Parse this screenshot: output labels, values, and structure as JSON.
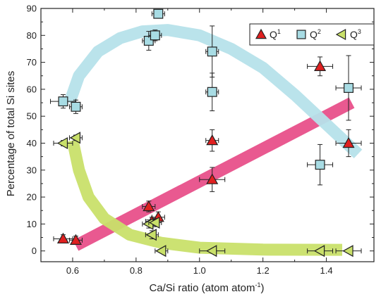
{
  "chart_data": {
    "type": "scatter",
    "xlabel_main": "Ca/Si ratio (atom atom",
    "xlabel_sup": "-1",
    "xlabel_end": ")",
    "ylabel": "Percentage of total Si sites",
    "xlim": [
      0.5,
      1.55
    ],
    "ylim": [
      -4,
      90
    ],
    "xticks": [
      0.6,
      0.8,
      1.0,
      1.2,
      1.4
    ],
    "xtick_labels": [
      "0.6",
      "0.8",
      "1.0",
      "1.2",
      "1.4"
    ],
    "yticks": [
      0,
      10,
      20,
      30,
      40,
      50,
      60,
      70,
      80,
      90
    ],
    "ytick_labels": [
      "0",
      "10",
      "20",
      "30",
      "40",
      "50",
      "60",
      "70",
      "80",
      "90"
    ],
    "legend_position": "top-right",
    "series": [
      {
        "name": "Q",
        "name_sup": "1",
        "marker": "triangle-up",
        "color": "#e02020",
        "points": [
          {
            "x": 0.57,
            "y": 4.5,
            "xerr": 0.03,
            "yerr": 1.5
          },
          {
            "x": 0.61,
            "y": 4.0,
            "xerr": 0.02,
            "yerr": 1.5
          },
          {
            "x": 0.84,
            "y": 16.5,
            "xerr": 0.02,
            "yerr": 2
          },
          {
            "x": 0.87,
            "y": 12.5,
            "xerr": 0.02,
            "yerr": 2
          },
          {
            "x": 0.85,
            "y": 11.0,
            "xerr": 0.02,
            "yerr": 1.5
          },
          {
            "x": 1.04,
            "y": 41.0,
            "xerr": 0.02,
            "yerr": 4
          },
          {
            "x": 1.04,
            "y": 26.5,
            "xerr": 0.04,
            "yerr": 4.5
          },
          {
            "x": 1.38,
            "y": 68.5,
            "xerr": 0.04,
            "yerr": 3.5
          },
          {
            "x": 1.47,
            "y": 40.0,
            "xerr": 0.04,
            "yerr": 5
          }
        ]
      },
      {
        "name": "Q",
        "name_sup": "2",
        "marker": "square",
        "color": "#a8dce4",
        "points": [
          {
            "x": 0.57,
            "y": 55.5,
            "xerr": 0.04,
            "yerr": 2.5
          },
          {
            "x": 0.61,
            "y": 53.5,
            "xerr": 0.02,
            "yerr": 2.5
          },
          {
            "x": 0.84,
            "y": 78.0,
            "xerr": 0.02,
            "yerr": 3.5
          },
          {
            "x": 0.86,
            "y": 80.0,
            "xerr": 0.02,
            "yerr": 2
          },
          {
            "x": 0.87,
            "y": 88.0,
            "xerr": 0.02,
            "yerr": 1
          },
          {
            "x": 1.04,
            "y": 74.0,
            "xerr": 0.02,
            "yerr": 9.5
          },
          {
            "x": 1.04,
            "y": 59.0,
            "xerr": 0.02,
            "yerr": 7
          },
          {
            "x": 1.38,
            "y": 32.0,
            "xerr": 0.04,
            "yerr": 7.5
          },
          {
            "x": 1.47,
            "y": 60.5,
            "xerr": 0.04,
            "yerr": 12
          }
        ]
      },
      {
        "name": "Q",
        "name_sup": "3",
        "marker": "triangle-left",
        "color": "#c9e06a",
        "points": [
          {
            "x": 0.57,
            "y": 40.0,
            "xerr": 0.03,
            "yerr": 1
          },
          {
            "x": 0.61,
            "y": 42.0,
            "xerr": 0.02,
            "yerr": 1
          },
          {
            "x": 0.84,
            "y": 10.0,
            "xerr": 0.02,
            "yerr": 1.5
          },
          {
            "x": 0.86,
            "y": 10.5,
            "xerr": 0.02,
            "yerr": 1.5
          },
          {
            "x": 0.85,
            "y": 6.0,
            "xerr": 0.02,
            "yerr": 1.5
          },
          {
            "x": 0.88,
            "y": 0.0,
            "xerr": 0.02,
            "yerr": 0
          },
          {
            "x": 1.04,
            "y": 0.0,
            "xerr": 0.04,
            "yerr": 0
          },
          {
            "x": 1.38,
            "y": 0.0,
            "xerr": 0.04,
            "yerr": 0
          },
          {
            "x": 1.47,
            "y": 0.0,
            "xerr": 0.04,
            "yerr": 0
          }
        ]
      }
    ],
    "trend_bands": [
      {
        "series": "Q1",
        "color": "#e8508a",
        "points": [
          [
            0.61,
            2
          ],
          [
            1.48,
            55
          ]
        ]
      },
      {
        "series": "Q2",
        "color": "#b6e2ea",
        "points": [
          [
            0.59,
            55
          ],
          [
            0.62,
            65
          ],
          [
            0.68,
            74
          ],
          [
            0.75,
            79
          ],
          [
            0.82,
            81.5
          ],
          [
            0.9,
            82
          ],
          [
            1.0,
            80
          ],
          [
            1.1,
            75
          ],
          [
            1.2,
            68
          ],
          [
            1.3,
            58
          ],
          [
            1.4,
            47
          ],
          [
            1.5,
            36
          ]
        ]
      },
      {
        "series": "Q3",
        "color": "#c9e06a",
        "points": [
          [
            0.6,
            41
          ],
          [
            0.62,
            30
          ],
          [
            0.65,
            20
          ],
          [
            0.7,
            12
          ],
          [
            0.78,
            6
          ],
          [
            0.88,
            3
          ],
          [
            1.0,
            1.2
          ],
          [
            1.2,
            0.5
          ],
          [
            1.45,
            0.4
          ]
        ]
      }
    ]
  }
}
